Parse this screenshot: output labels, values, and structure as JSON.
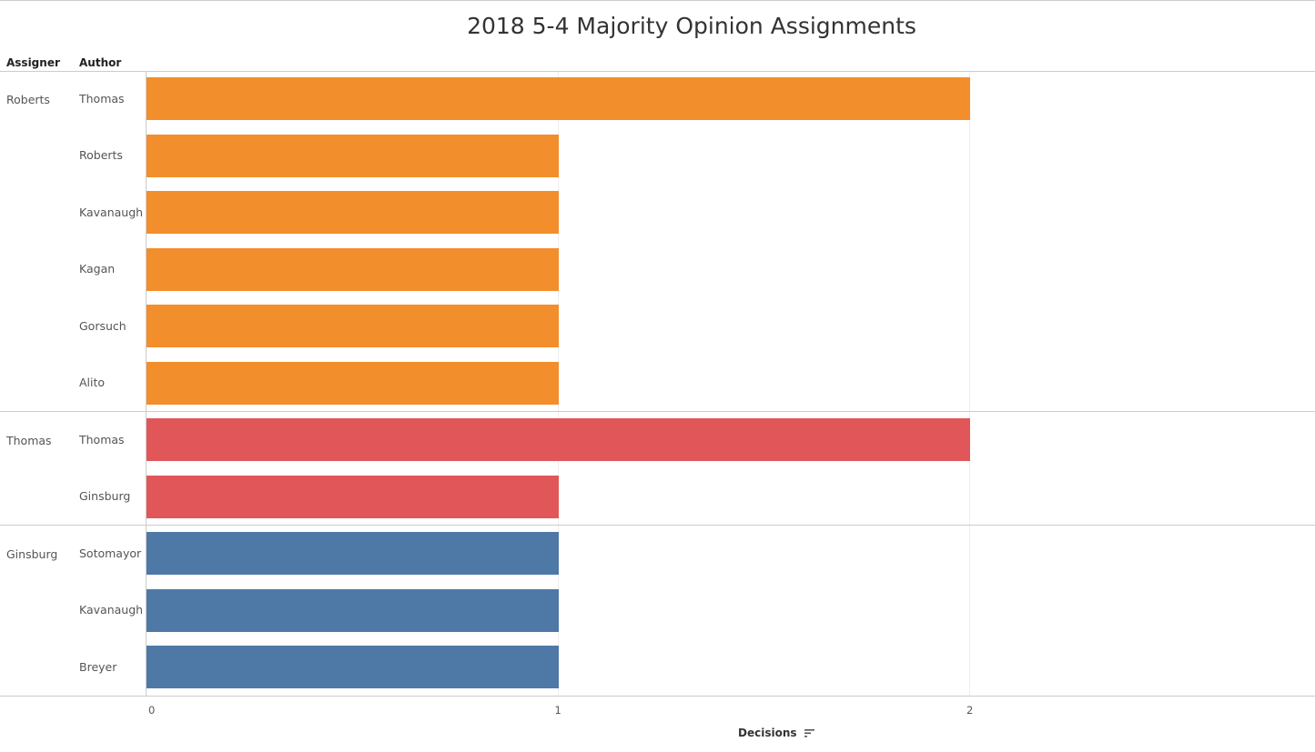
{
  "chart_data": {
    "type": "bar",
    "orientation": "horizontal",
    "title": "2018 5-4 Majority Opinion Assignments",
    "row_headers": [
      "Assigner",
      "Author"
    ],
    "xlabel": "Decisions",
    "xlim": [
      0,
      2.8
    ],
    "xticks": [
      "0",
      "1",
      "2"
    ],
    "grid": true,
    "groups": [
      {
        "assigner": "Roberts",
        "color": "#F28E2B",
        "authors": [
          "Thomas",
          "Roberts",
          "Kavanaugh",
          "Kagan",
          "Gorsuch",
          "Alito"
        ],
        "values": [
          2,
          1,
          1,
          1,
          1,
          1
        ]
      },
      {
        "assigner": "Thomas",
        "color": "#E15759",
        "authors": [
          "Thomas",
          "Ginsburg"
        ],
        "values": [
          2,
          1
        ]
      },
      {
        "assigner": "Ginsburg",
        "color": "#4E79A7",
        "authors": [
          "Sotomayor",
          "Kavanaugh",
          "Breyer"
        ],
        "values": [
          1,
          1,
          1
        ]
      }
    ]
  },
  "sort_icon": "sort-descending-icon"
}
